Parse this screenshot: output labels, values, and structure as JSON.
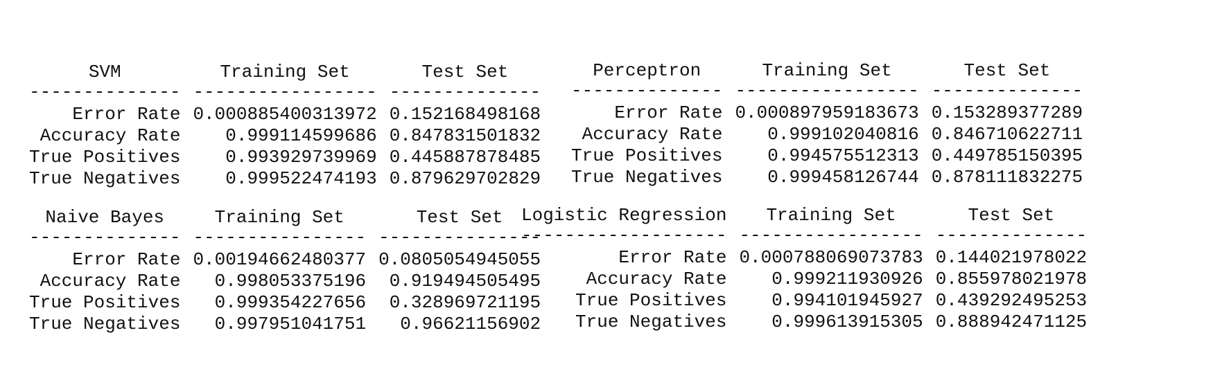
{
  "tables": [
    {
      "model": "SVM",
      "columns": [
        "Training Set",
        "Test Set"
      ],
      "dashes": [
        "--------------",
        "-----------------",
        "--------------"
      ],
      "rows": [
        {
          "label": "Error Rate",
          "train": "0.000885400313972",
          "test": "0.152168498168"
        },
        {
          "label": "Accuracy Rate",
          "train": "0.999114599686",
          "test": "0.847831501832"
        },
        {
          "label": "True Positives",
          "train": "0.993929739969",
          "test": "0.445887878485"
        },
        {
          "label": "True Negatives",
          "train": "0.999522474193",
          "test": "0.879629702829"
        }
      ]
    },
    {
      "model": "Perceptron",
      "columns": [
        "Training Set",
        "Test Set"
      ],
      "dashes": [
        "--------------",
        "-----------------",
        "--------------"
      ],
      "rows": [
        {
          "label": "Error Rate",
          "train": "0.000897959183673",
          "test": "0.153289377289"
        },
        {
          "label": "Accuracy Rate",
          "train": "0.999102040816",
          "test": "0.846710622711"
        },
        {
          "label": "True Positives",
          "train": "0.994575512313",
          "test": "0.449785150395"
        },
        {
          "label": "True Negatives",
          "train": "0.999458126744",
          "test": "0.878111832275"
        }
      ]
    },
    {
      "model": "Naive Bayes",
      "columns": [
        "Training Set",
        "Test Set"
      ],
      "dashes": [
        "--------------",
        "----------------",
        "---------------"
      ],
      "rows": [
        {
          "label": "Error Rate",
          "train": "0.00194662480377",
          "test": "0.0805054945055"
        },
        {
          "label": "Accuracy Rate",
          "train": "0.998053375196",
          "test": "0.919494505495"
        },
        {
          "label": "True Positives",
          "train": "0.999354227656",
          "test": "0.328969721195"
        },
        {
          "label": "True Negatives",
          "train": "0.997951041751",
          "test": "0.96621156902"
        }
      ]
    },
    {
      "model": "Logistic Regression",
      "columns": [
        "Training Set",
        "Test Set"
      ],
      "dashes": [
        "-------------------",
        "-----------------",
        "--------------"
      ],
      "rows": [
        {
          "label": "Error Rate",
          "train": "0.000788069073783",
          "test": "0.144021978022"
        },
        {
          "label": "Accuracy Rate",
          "train": "0.999211930926",
          "test": "0.855978021978"
        },
        {
          "label": "True Positives",
          "train": "0.994101945927",
          "test": "0.439292495253"
        },
        {
          "label": "True Negatives",
          "train": "0.999613915305",
          "test": "0.888942471125"
        }
      ]
    }
  ]
}
